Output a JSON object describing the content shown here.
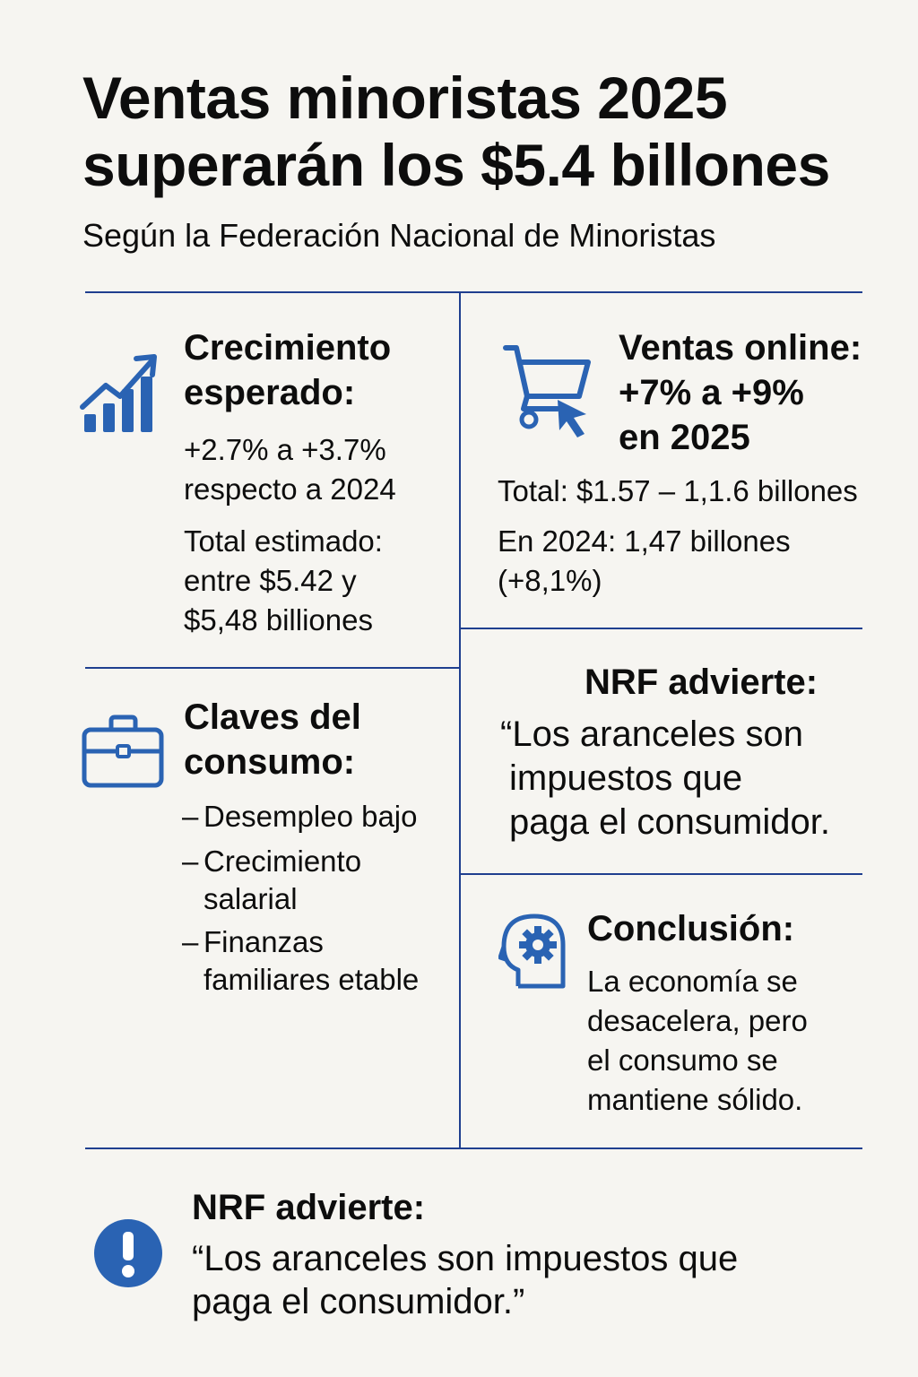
{
  "header": {
    "title_line1": "Ventas minoristas 2025",
    "title_line2": "superarán los $5.4 billones",
    "subtitle": "Según la Federación Nacional de Minoristas"
  },
  "growth": {
    "icon": "bar-chart-growth-icon",
    "heading_line1": "Crecimiento",
    "heading_line2": "esperado:",
    "range_line1": "+2.7% a +3.7%",
    "range_line2": "respecto a 2024",
    "total_line1": "Total estimado:",
    "total_line2": "entre $5.42 y",
    "total_line3": "$5,48 billiones"
  },
  "online": {
    "icon": "shopping-cart-icon",
    "heading_line1": "Ventas online:",
    "heading_line2": "+7% a +9%",
    "heading_line3": "en 2025",
    "total": "Total: $1.57 – 1,1.6 billones",
    "prev_line1": "En 2024: 1,47 billones",
    "prev_line2": "(+8,1%)"
  },
  "keys": {
    "icon": "briefcase-icon",
    "heading_line1": "Claves del",
    "heading_line2": "consumo:",
    "dash": "–",
    "items": [
      {
        "line1": "Desempleo bajo",
        "line2": ""
      },
      {
        "line1": "Crecimiento",
        "line2": "salarial"
      },
      {
        "line1": "Finanzas",
        "line2": "familiares etable"
      }
    ]
  },
  "warning_mid": {
    "heading": "NRF advierte:",
    "quote_line1": "“Los aranceles son",
    "quote_line2": "impuestos que",
    "quote_line3": "paga el consumidor."
  },
  "conclusion": {
    "icon": "head-gear-icon",
    "heading": "Conclusión:",
    "text_line1": "La economía se",
    "text_line2": "desacelera, pero",
    "text_line3": "el consumo se",
    "text_line4": "mantiene sólido."
  },
  "warning_bottom": {
    "icon": "exclamation-circle-icon",
    "heading": "NRF advierte:",
    "quote_line1": "“Los aranceles son impuestos que",
    "quote_line2": "paga el consumidor.”"
  },
  "colors": {
    "background": "#f6f5f1",
    "accent": "#2a63b3",
    "rule": "#1f3f8f",
    "text": "#0d0d0d"
  }
}
